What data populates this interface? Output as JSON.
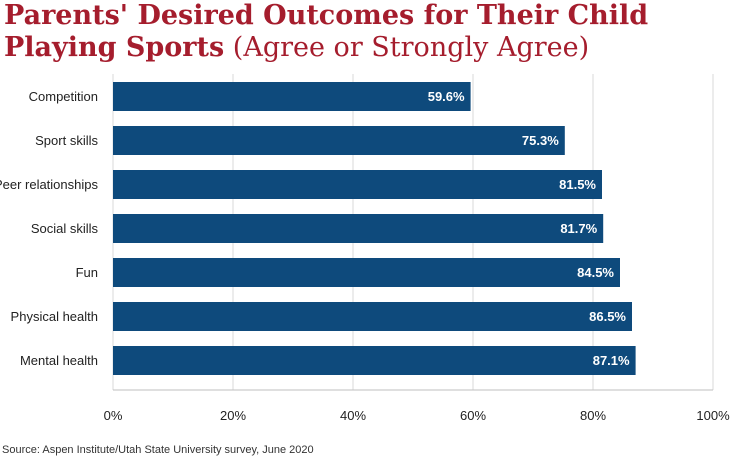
{
  "title": {
    "main": "Parents' Desired Outcomes for Their Child Playing Sports",
    "sub": "(Agree or Strongly Agree)"
  },
  "source": "Source: Aspen Institute/Utah State University survey, June 2020",
  "colors": {
    "bar": "#0e4a7c",
    "title": "#a51d2d",
    "grid": "#d9d9d9"
  },
  "chart_data": {
    "type": "bar",
    "orientation": "horizontal",
    "title": "Parents' Desired Outcomes for Their Child Playing Sports (Agree or Strongly Agree)",
    "categories": [
      "Competition",
      "Sport skills",
      "Peer relationships",
      "Social skills",
      "Fun",
      "Physical health",
      "Mental health"
    ],
    "values": [
      59.6,
      75.3,
      81.5,
      81.7,
      84.5,
      86.5,
      87.1
    ],
    "value_labels": [
      "59.6%",
      "75.3%",
      "81.5%",
      "81.7%",
      "84.5%",
      "86.5%",
      "87.1%"
    ],
    "xlim": [
      0,
      100
    ],
    "xticks": [
      0,
      20,
      40,
      60,
      80,
      100
    ],
    "xtick_labels": [
      "0%",
      "20%",
      "40%",
      "60%",
      "80%",
      "100%"
    ],
    "grid": true,
    "legend": "none"
  }
}
